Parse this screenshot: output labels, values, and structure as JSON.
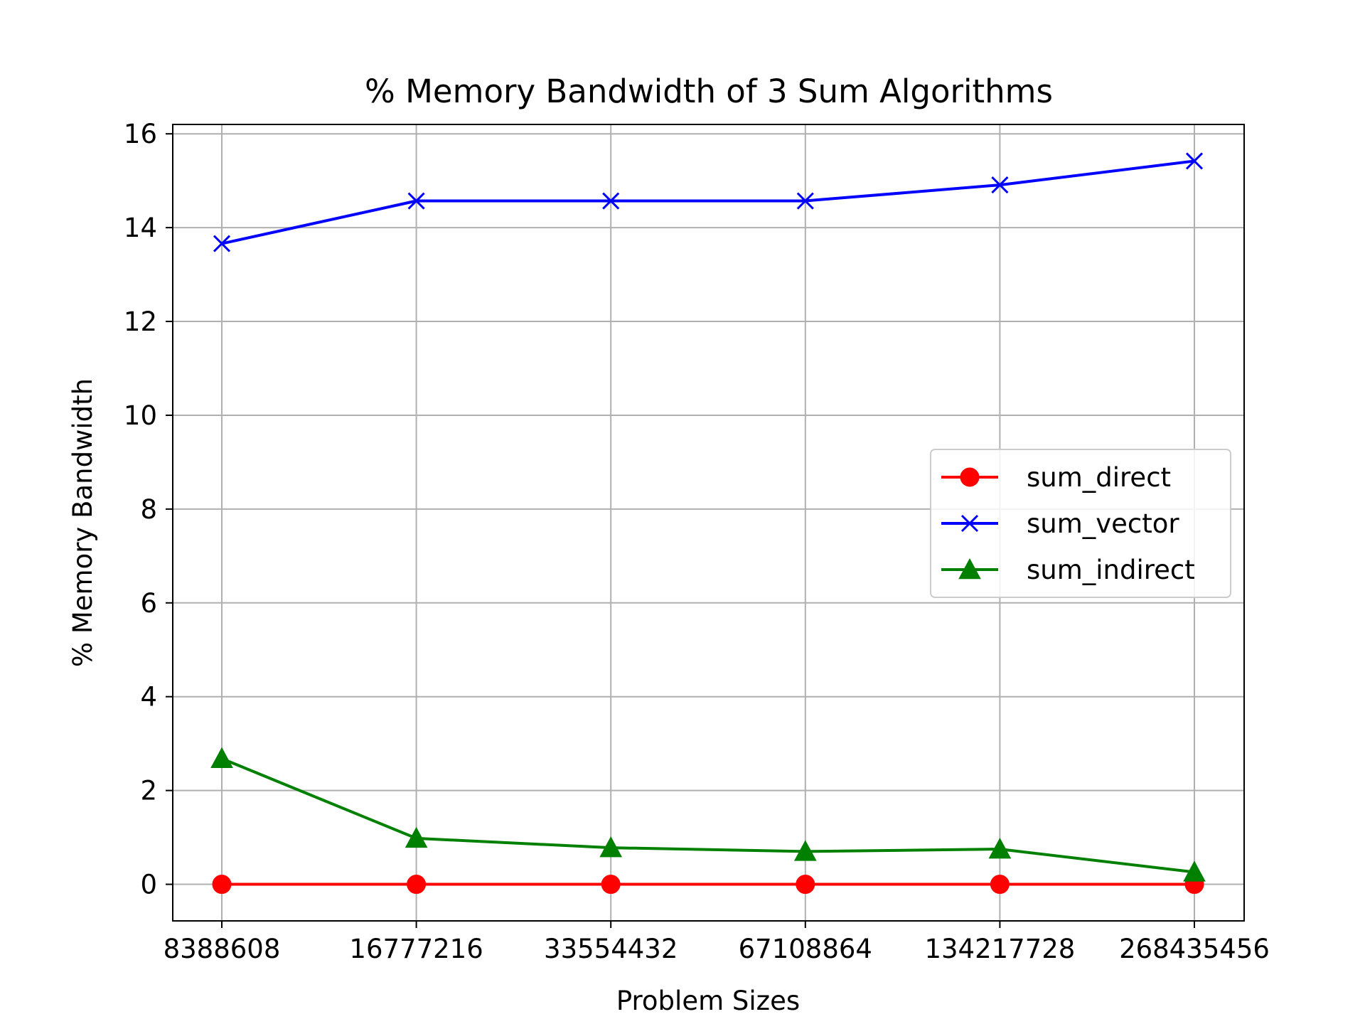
{
  "chart_data": {
    "type": "line",
    "title": "% Memory Bandwidth of 3 Sum Algorithms",
    "xlabel": "Problem Sizes",
    "ylabel": "% Memory Bandwidth",
    "categories": [
      "8388608",
      "16777216",
      "33554432",
      "67108864",
      "134217728",
      "268435456"
    ],
    "ylim": [
      -0.78,
      16.2
    ],
    "yticks": [
      0,
      2,
      4,
      6,
      8,
      10,
      12,
      14,
      16
    ],
    "grid": true,
    "legend_position": "center-right",
    "series": [
      {
        "name": "sum_direct",
        "color": "#ff0000",
        "marker": "circle",
        "values": [
          0.0,
          0.0,
          0.0,
          0.0,
          0.0,
          0.0
        ]
      },
      {
        "name": "sum_vector",
        "color": "#0000ff",
        "marker": "x",
        "values": [
          13.66,
          14.57,
          14.57,
          14.57,
          14.91,
          15.42
        ]
      },
      {
        "name": "sum_indirect",
        "color": "#008000",
        "marker": "triangle",
        "values": [
          2.68,
          0.98,
          0.78,
          0.7,
          0.75,
          0.26
        ]
      }
    ]
  }
}
